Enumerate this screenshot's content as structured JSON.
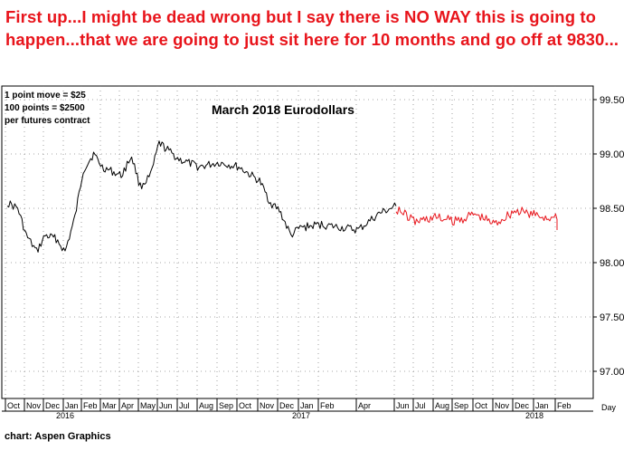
{
  "headline": "First up...I might be dead wrong but I say there is NO WAY this is going to happen...that we are going to just sit here for 10 months and go off at 9830...",
  "credit": "chart: Aspen Graphics",
  "chart_data": {
    "type": "line",
    "title": "March 2018 Eurodollars",
    "notes": [
      "1 point move = $25",
      "100 points = $2500",
      "per futures contract"
    ],
    "x_unit_label": "Day",
    "ylim": [
      96.75,
      99.625
    ],
    "y_ticks": [
      "99.50",
      "99.00",
      "98.50",
      "98.00",
      "97.50",
      "97.00"
    ],
    "grid": "dotted",
    "x_ticks": [
      "Oct",
      "Nov",
      "Dec",
      "Jan",
      "Feb",
      "Mar",
      "Apr",
      "May",
      "Jun",
      "Jul",
      "Aug",
      "Sep",
      "Oct",
      "Nov",
      "Dec",
      "Jan",
      "Feb",
      "Apr",
      "Jun",
      "Jul",
      "Aug",
      "Sep",
      "Oct",
      "Nov",
      "Dec",
      "Jan",
      "Feb"
    ],
    "year_labels": [
      "2016",
      "2017",
      "2018"
    ],
    "colors": {
      "actual": "#000000",
      "projection": "#e8141b",
      "headline": "#e8141b"
    },
    "series": [
      {
        "role": "actual",
        "points": [
          [
            "Oct",
            98.55
          ],
          [
            "Oct",
            98.5
          ],
          [
            "Nov",
            98.25
          ],
          [
            "Nov",
            98.1
          ],
          [
            "Dec",
            98.25
          ],
          [
            "Dec",
            98.22
          ],
          [
            "Jan",
            98.1
          ],
          [
            "Jan",
            98.42
          ],
          [
            "Feb",
            98.85
          ],
          [
            "Feb",
            99.0
          ],
          [
            "Mar",
            98.88
          ],
          [
            "Apr",
            98.8
          ],
          [
            "Apr",
            98.98
          ],
          [
            "May",
            98.7
          ],
          [
            "May",
            98.8
          ],
          [
            "Jun",
            99.1
          ],
          [
            "Jul",
            98.95
          ],
          [
            "Aug",
            98.88
          ],
          [
            "Sep",
            98.92
          ],
          [
            "Oct",
            98.88
          ],
          [
            "Nov",
            98.75
          ],
          [
            "Nov",
            98.55
          ],
          [
            "Dec",
            98.48
          ],
          [
            "Dec",
            98.25
          ],
          [
            "Jan",
            98.32
          ],
          [
            "Feb",
            98.35
          ],
          [
            "Apr",
            98.3
          ],
          [
            "Apr",
            98.45
          ],
          [
            "Jun",
            98.52
          ]
        ]
      },
      {
        "role": "projection",
        "points": [
          [
            "Jun",
            98.5
          ],
          [
            "Jul",
            98.38
          ],
          [
            "Aug",
            98.42
          ],
          [
            "Sep",
            98.38
          ],
          [
            "Oct",
            98.45
          ],
          [
            "Nov",
            98.36
          ],
          [
            "Dec",
            98.48
          ],
          [
            "Jan",
            98.44
          ],
          [
            "Feb",
            98.4
          ],
          [
            "Feb",
            98.3
          ]
        ]
      }
    ]
  }
}
